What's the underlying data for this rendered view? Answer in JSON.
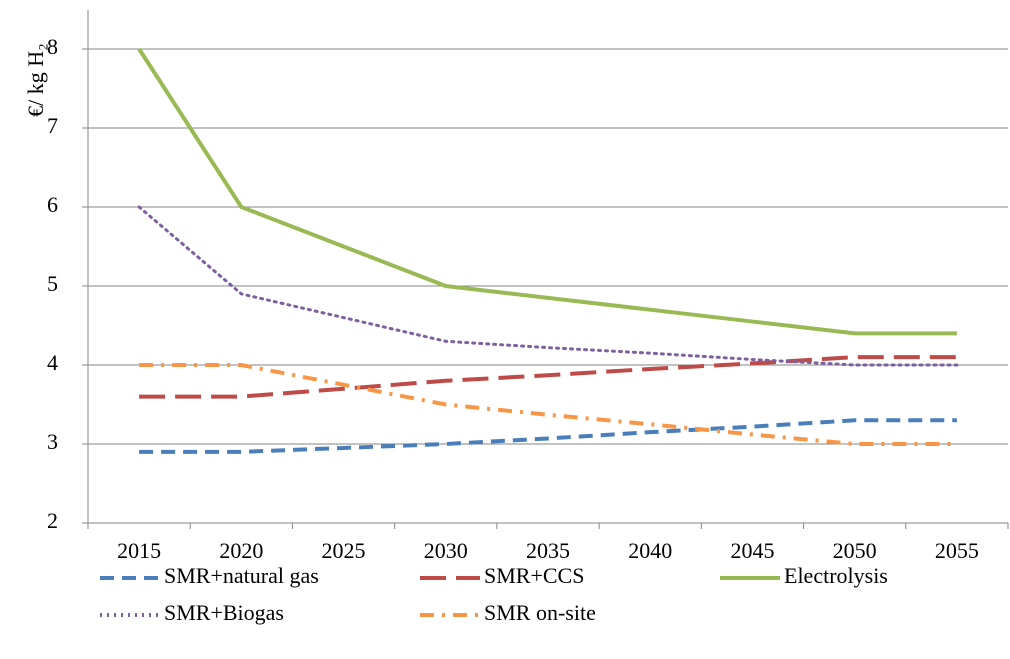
{
  "chart_data": {
    "type": "line",
    "ylabel": "€/ kg H₂",
    "categories": [
      "2015",
      "2020",
      "2025",
      "2030",
      "2035",
      "2040",
      "2045",
      "2050",
      "2055"
    ],
    "ylim": [
      2,
      8
    ],
    "yticks": [
      2,
      3,
      4,
      5,
      6,
      7,
      8
    ],
    "grid": true,
    "legend": "bottom",
    "series": [
      {
        "name": "SMR+natural gas",
        "color": "#4a7ebb",
        "dash": "dashed",
        "values": [
          2.9,
          2.9,
          2.95,
          3.0,
          3.07,
          3.15,
          3.22,
          3.3,
          3.3
        ]
      },
      {
        "name": "SMR+CCS",
        "color": "#be4b48",
        "dash": "longdash",
        "values": [
          3.6,
          3.6,
          3.7,
          3.8,
          3.87,
          3.95,
          4.02,
          4.1,
          4.1
        ]
      },
      {
        "name": "Electrolysis",
        "color": "#98b954",
        "dash": "solid",
        "values": [
          8,
          6,
          5.5,
          5,
          4.85,
          4.7,
          4.55,
          4.4,
          4.4
        ]
      },
      {
        "name": "SMR+Biogas",
        "color": "#7d60a0",
        "dash": "dotted",
        "values": [
          6,
          4.9,
          4.6,
          4.3,
          4.22,
          4.15,
          4.07,
          4.0,
          4.0
        ]
      },
      {
        "name": "SMR on-site",
        "color": "#f79646",
        "dash": "dashdot",
        "values": [
          4,
          4,
          3.75,
          3.5,
          3.37,
          3.25,
          3.12,
          3.0,
          3.0
        ]
      }
    ]
  }
}
